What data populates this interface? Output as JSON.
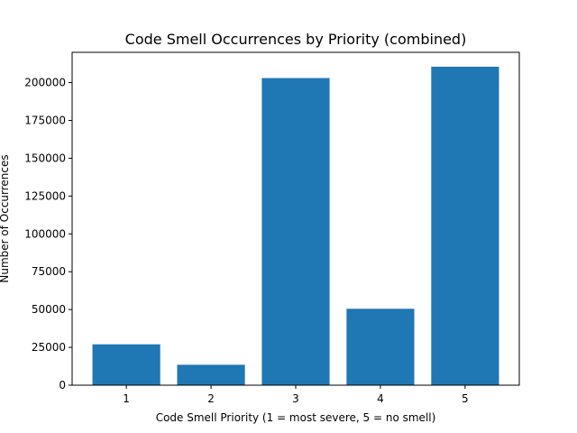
{
  "chart_data": {
    "type": "bar",
    "title": "Code Smell Occurrences by Priority (combined)",
    "xlabel": "Code Smell Priority (1 = most severe, 5 = no smell)",
    "ylabel": "Number of Occurrences",
    "categories": [
      "1",
      "2",
      "3",
      "4",
      "5"
    ],
    "values": [
      27000,
      13500,
      203000,
      50500,
      210500
    ],
    "ylim": [
      0,
      220000
    ],
    "yticks": [
      0,
      25000,
      50000,
      75000,
      100000,
      125000,
      150000,
      175000,
      200000
    ],
    "ytick_labels": [
      "0",
      "25000",
      "50000",
      "75000",
      "100000",
      "125000",
      "150000",
      "175000",
      "200000"
    ],
    "grid": false,
    "bar_color": "#1f77b4"
  }
}
